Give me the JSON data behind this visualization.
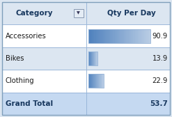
{
  "categories": [
    "Accessories",
    "Bikes",
    "Clothing"
  ],
  "values": [
    90.9,
    13.9,
    22.9
  ],
  "grand_total": 53.7,
  "max_value": 90.9,
  "header_bg": "#dce6f1",
  "header_text": "#17375e",
  "row_bg_odd": "#ffffff",
  "row_bg_even": "#dce6f1",
  "total_bg": "#c5d9f1",
  "total_text": "#17375e",
  "bar_color_dark": "#4f81bd",
  "bar_color_light": "#b8cce4",
  "border_color": "#95b3d7",
  "fig_bg": "#dce6f1",
  "col1_label": "Category",
  "col2_label": "Qty Per Day",
  "figsize": [
    2.47,
    1.68
  ],
  "dpi": 100
}
